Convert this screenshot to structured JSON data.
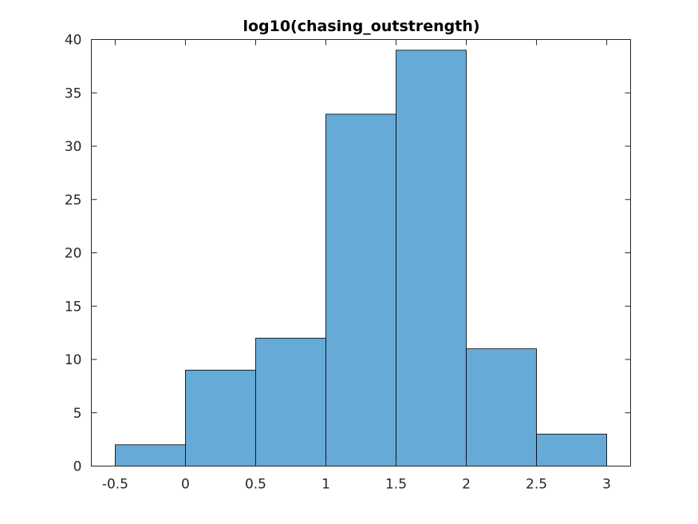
{
  "chart_data": {
    "type": "bar",
    "title": "log10(chasing_outstrength)",
    "xlabel": "",
    "ylabel": "",
    "bin_edges": [
      -0.5,
      0,
      0.5,
      1,
      1.5,
      2,
      2.5,
      3
    ],
    "values": [
      2,
      9,
      12,
      33,
      39,
      11,
      3
    ],
    "xlim": [
      -0.67,
      3.17
    ],
    "ylim": [
      0,
      40
    ],
    "xticks": [
      -0.5,
      0,
      0.5,
      1,
      1.5,
      2,
      2.5,
      3
    ],
    "xtick_labels": [
      "-0.5",
      "0",
      "0.5",
      "1",
      "1.5",
      "2",
      "2.5",
      "3"
    ],
    "yticks": [
      0,
      5,
      10,
      15,
      20,
      25,
      30,
      35,
      40
    ],
    "ytick_labels": [
      "0",
      "5",
      "10",
      "15",
      "20",
      "25",
      "30",
      "35",
      "40"
    ],
    "grid": false,
    "bar_color": "#66AAD7",
    "edge_color": "#000000"
  }
}
